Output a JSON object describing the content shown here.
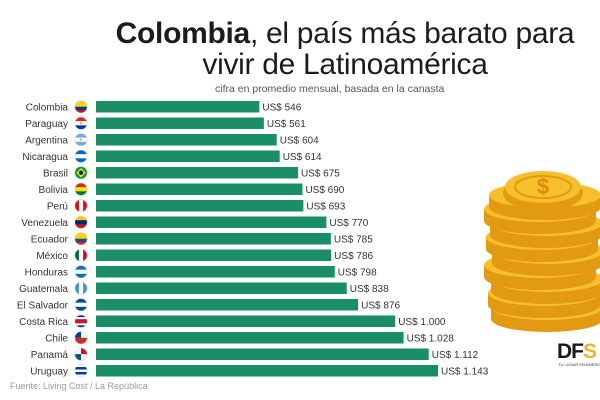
{
  "header": {
    "title_bold": "Colombia",
    "title_rest": ", el país más barato para vivir de Latinoamérica",
    "subtitle": "cifra en promedio mensual, basada en la canasta"
  },
  "footer": {
    "source": "Fuente: Living Cost / La República",
    "logo_main": "DF",
    "logo_accent": "S",
    "logo_tagline": "TU LUGAR EN AMÉRICA"
  },
  "colors": {
    "bar": "#1a8e68",
    "coin_face": "#f7bf2c",
    "coin_edge": "#e29a12",
    "coin_symbol": "#d98b0c"
  },
  "chart_data": {
    "type": "bar",
    "orientation": "horizontal",
    "categories": [
      "Colombia",
      "Paraguay",
      "Argentina",
      "Nicaragua",
      "Brasil",
      "Bolivia",
      "Perú",
      "Venezuela",
      "Ecuador",
      "México",
      "Honduras",
      "Guatemala",
      "El Salvador",
      "Costa Rica",
      "Chile",
      "Panamá",
      "Uruguay"
    ],
    "values": [
      546,
      561,
      604,
      614,
      675,
      690,
      693,
      770,
      785,
      786,
      798,
      838,
      876,
      1000,
      1028,
      1112,
      1143
    ],
    "value_labels": [
      "US$ 546",
      "US$ 561",
      "US$ 604",
      "US$ 614",
      "US$ 675",
      "US$ 690",
      "US$ 693",
      "US$ 770",
      "US$ 785",
      "US$ 786",
      "US$ 798",
      "US$ 838",
      "US$ 876",
      "US$ 1.000",
      "US$ 1.028",
      "US$ 1.112",
      "US$ 1.143"
    ],
    "unit": "US$",
    "flags": [
      "colombia-flag-icon",
      "paraguay-flag-icon",
      "argentina-flag-icon",
      "nicaragua-flag-icon",
      "brazil-flag-icon",
      "bolivia-flag-icon",
      "peru-flag-icon",
      "venezuela-flag-icon",
      "ecuador-flag-icon",
      "mexico-flag-icon",
      "honduras-flag-icon",
      "guatemala-flag-icon",
      "el-salvador-flag-icon",
      "costa-rica-flag-icon",
      "chile-flag-icon",
      "panama-flag-icon",
      "uruguay-flag-icon"
    ],
    "grid": false,
    "legend": "none"
  }
}
